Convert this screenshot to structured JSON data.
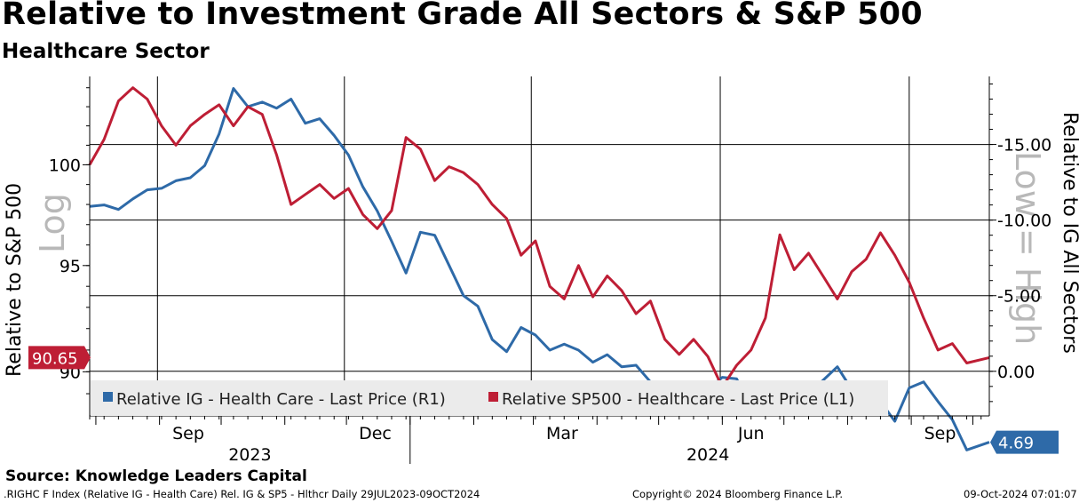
{
  "header": {
    "title": "Relative to Investment Grade All Sectors & S&P 500",
    "subtitle": "Healthcare Sector"
  },
  "footer": {
    "source": "Source: Knowledge Leaders Capital",
    "ticker": ".RIGHC F Index (Relative IG - Health Care) Rel. IG & SP5 - Hlthcr  Daily 29JUL2023-09OCT2024",
    "copyright": "Copyright© 2024 Bloomberg Finance L.P.",
    "timestamp": "09-Oct-2024 07:01:07"
  },
  "chart_data": {
    "type": "line",
    "colors": {
      "ig": "#2e6aa8",
      "sp500": "#be1e35"
    },
    "x": [
      "2023-07-29",
      "2024-10-09"
    ],
    "left_axis": {
      "label": "Relative to S&P 500",
      "overlay": "Log",
      "ticks": [
        100,
        95,
        90
      ],
      "ylim": [
        88,
        104.6
      ],
      "scale": "log",
      "last_value_badge": "90.65"
    },
    "right_axis": {
      "label": "Relative to IG All Sectors",
      "overlay": "Low = High",
      "ticks": [
        "-15.00",
        "-10.00",
        "-5.00",
        "0.00"
      ],
      "ylim": [
        -19.5,
        2.95
      ],
      "inverted": true,
      "last_value_badge": "4.69"
    },
    "x_axis": {
      "months": [
        "Sep",
        "Dec",
        "Mar",
        "Jun",
        "Sep"
      ],
      "years": [
        "2023",
        "2024"
      ]
    },
    "legend": {
      "ig": "Relative IG - Health Care - Last Price (R1)",
      "sp500": "Relative SP500 - Healthcare - Last Price (L1)"
    },
    "series": [
      {
        "name": "Relative IG - Health Care - Last Price (R1)",
        "axis": "right",
        "points": [
          [
            "2023-07-29",
            -10.9
          ],
          [
            "2023-08-05",
            -11.0
          ],
          [
            "2023-08-12",
            -10.7
          ],
          [
            "2023-08-19",
            -11.4
          ],
          [
            "2023-08-26",
            -12.0
          ],
          [
            "2023-09-02",
            -12.1
          ],
          [
            "2023-09-09",
            -12.6
          ],
          [
            "2023-09-16",
            -12.8
          ],
          [
            "2023-09-23",
            -13.6
          ],
          [
            "2023-09-30",
            -15.7
          ],
          [
            "2023-10-07",
            -18.7
          ],
          [
            "2023-10-14",
            -17.5
          ],
          [
            "2023-10-21",
            -17.8
          ],
          [
            "2023-10-28",
            -17.4
          ],
          [
            "2023-11-04",
            -18.0
          ],
          [
            "2023-11-11",
            -16.4
          ],
          [
            "2023-11-18",
            -16.7
          ],
          [
            "2023-11-25",
            -15.6
          ],
          [
            "2023-12-02",
            -14.3
          ],
          [
            "2023-12-09",
            -12.2
          ],
          [
            "2023-12-16",
            -10.6
          ],
          [
            "2023-12-23",
            -8.6
          ],
          [
            "2023-12-30",
            -6.5
          ],
          [
            "2024-01-06",
            -9.2
          ],
          [
            "2024-01-13",
            -9.0
          ],
          [
            "2024-01-20",
            -7.0
          ],
          [
            "2024-01-27",
            -5.0
          ],
          [
            "2024-02-03",
            -4.3
          ],
          [
            "2024-02-10",
            -2.1
          ],
          [
            "2024-02-17",
            -1.3
          ],
          [
            "2024-02-24",
            -2.9
          ],
          [
            "2024-03-02",
            -2.4
          ],
          [
            "2024-03-09",
            -1.4
          ],
          [
            "2024-03-16",
            -1.8
          ],
          [
            "2024-03-23",
            -1.4
          ],
          [
            "2024-03-30",
            -0.6
          ],
          [
            "2024-04-06",
            -1.1
          ],
          [
            "2024-04-13",
            -0.3
          ],
          [
            "2024-04-20",
            -0.4
          ],
          [
            "2024-04-27",
            0.7
          ],
          [
            "2024-05-04",
            1.4
          ],
          [
            "2024-05-11",
            1.7
          ],
          [
            "2024-05-18",
            1.9
          ],
          [
            "2024-05-25",
            1.2
          ],
          [
            "2024-06-01",
            0.4
          ],
          [
            "2024-06-08",
            0.5
          ],
          [
            "2024-06-15",
            2.4
          ],
          [
            "2024-06-22",
            2.1
          ],
          [
            "2024-06-29",
            1.9
          ],
          [
            "2024-07-06",
            2.9
          ],
          [
            "2024-07-13",
            1.4
          ],
          [
            "2024-07-20",
            0.6
          ],
          [
            "2024-07-27",
            -0.3
          ],
          [
            "2024-08-03",
            1.2
          ],
          [
            "2024-08-10",
            2.1
          ],
          [
            "2024-08-17",
            2.0
          ],
          [
            "2024-08-24",
            3.3
          ],
          [
            "2024-08-31",
            1.1
          ],
          [
            "2024-09-07",
            0.7
          ],
          [
            "2024-09-14",
            2.0
          ],
          [
            "2024-09-21",
            3.2
          ],
          [
            "2024-09-28",
            5.2
          ],
          [
            "2024-10-09",
            4.69
          ]
        ]
      },
      {
        "name": "Relative SP500 - Healthcare - Last Price (L1)",
        "axis": "left",
        "points": [
          [
            "2023-07-29",
            100.0
          ],
          [
            "2023-08-05",
            101.3
          ],
          [
            "2023-08-12",
            103.3
          ],
          [
            "2023-08-19",
            104.0
          ],
          [
            "2023-08-26",
            103.4
          ],
          [
            "2023-09-02",
            102.0
          ],
          [
            "2023-09-09",
            101.0
          ],
          [
            "2023-09-16",
            102.0
          ],
          [
            "2023-09-23",
            102.6
          ],
          [
            "2023-09-30",
            103.1
          ],
          [
            "2023-10-07",
            102.0
          ],
          [
            "2023-10-14",
            103.0
          ],
          [
            "2023-10-21",
            102.6
          ],
          [
            "2023-10-28",
            100.5
          ],
          [
            "2023-11-04",
            98.0
          ],
          [
            "2023-11-11",
            98.5
          ],
          [
            "2023-11-18",
            99.0
          ],
          [
            "2023-11-25",
            98.3
          ],
          [
            "2023-12-02",
            98.8
          ],
          [
            "2023-12-09",
            97.5
          ],
          [
            "2023-12-16",
            96.8
          ],
          [
            "2023-12-23",
            97.7
          ],
          [
            "2023-12-30",
            101.4
          ],
          [
            "2024-01-06",
            100.8
          ],
          [
            "2024-01-13",
            99.2
          ],
          [
            "2024-01-20",
            99.9
          ],
          [
            "2024-01-27",
            99.6
          ],
          [
            "2024-02-03",
            99.0
          ],
          [
            "2024-02-10",
            98.0
          ],
          [
            "2024-02-17",
            97.3
          ],
          [
            "2024-02-24",
            95.5
          ],
          [
            "2024-03-02",
            96.2
          ],
          [
            "2024-03-09",
            94.0
          ],
          [
            "2024-03-16",
            93.4
          ],
          [
            "2024-03-23",
            95.0
          ],
          [
            "2024-03-30",
            93.5
          ],
          [
            "2024-04-06",
            94.5
          ],
          [
            "2024-04-13",
            93.8
          ],
          [
            "2024-04-20",
            92.7
          ],
          [
            "2024-04-27",
            93.3
          ],
          [
            "2024-05-04",
            91.5
          ],
          [
            "2024-05-11",
            90.8
          ],
          [
            "2024-05-18",
            91.5
          ],
          [
            "2024-05-25",
            90.7
          ],
          [
            "2024-06-01",
            89.3
          ],
          [
            "2024-06-08",
            90.3
          ],
          [
            "2024-06-15",
            91.0
          ],
          [
            "2024-06-22",
            92.5
          ],
          [
            "2024-06-29",
            96.5
          ],
          [
            "2024-07-06",
            94.8
          ],
          [
            "2024-07-13",
            95.6
          ],
          [
            "2024-07-20",
            94.5
          ],
          [
            "2024-07-27",
            93.4
          ],
          [
            "2024-08-03",
            94.7
          ],
          [
            "2024-08-10",
            95.3
          ],
          [
            "2024-08-17",
            96.6
          ],
          [
            "2024-08-24",
            95.5
          ],
          [
            "2024-08-31",
            94.2
          ],
          [
            "2024-09-07",
            92.5
          ],
          [
            "2024-09-14",
            91.0
          ],
          [
            "2024-09-21",
            91.3
          ],
          [
            "2024-09-28",
            90.4
          ],
          [
            "2024-10-09",
            90.65
          ]
        ]
      }
    ]
  }
}
